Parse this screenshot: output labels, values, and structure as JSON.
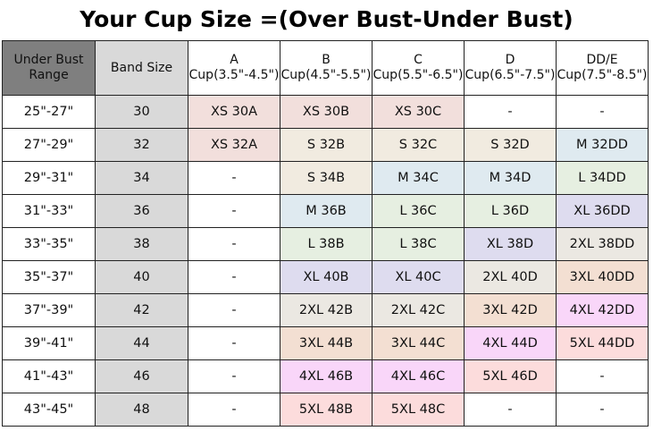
{
  "title": "Your Cup Size =(Over Bust-Under Bust)",
  "headers": [
    "Under Bust Range",
    "Band Size",
    "A Cup(3.5\"-4.5\")",
    "B Cup(4.5\"-5.5\")",
    "C Cup(5.5\"-6.5\")",
    "D Cup(6.5\"-7.5\")",
    "DD/E Cup(7.5\"-8.5\")"
  ],
  "colors": {
    "XS": "#f2dfdc",
    "S": "#f1ebe0",
    "M": "#dfeaf0",
    "L": "#e6efe1",
    "XL": "#dedcef",
    "2XL": "#ebe8e2",
    "3XL": "#f3dfd2",
    "4XL": "#f9d6f9",
    "5XL": "#fcdcdc",
    "empty": "#ffffff"
  },
  "rows": [
    {
      "range": "25\"-27\"",
      "band": "30",
      "cells": [
        "XS 30A",
        "XS 30B",
        "XS 30C",
        "-",
        "-"
      ]
    },
    {
      "range": "27\"-29\"",
      "band": "32",
      "cells": [
        "XS 32A",
        "S 32B",
        "S 32C",
        "S 32D",
        "M 32DD"
      ]
    },
    {
      "range": "29\"-31\"",
      "band": "34",
      "cells": [
        "-",
        "S 34B",
        "M 34C",
        "M 34D",
        "L 34DD"
      ]
    },
    {
      "range": "31\"-33\"",
      "band": "36",
      "cells": [
        "-",
        "M 36B",
        "L 36C",
        "L 36D",
        "XL 36DD"
      ]
    },
    {
      "range": "33\"-35\"",
      "band": "38",
      "cells": [
        "-",
        "L 38B",
        "L 38C",
        "XL 38D",
        "2XL 38DD"
      ]
    },
    {
      "range": "35\"-37\"",
      "band": "40",
      "cells": [
        "-",
        "XL 40B",
        "XL 40C",
        "2XL 40D",
        "3XL 40DD"
      ]
    },
    {
      "range": "37\"-39\"",
      "band": "42",
      "cells": [
        "-",
        "2XL 42B",
        "2XL 42C",
        "3XL 42D",
        "4XL 42DD"
      ]
    },
    {
      "range": "39\"-41\"",
      "band": "44",
      "cells": [
        "-",
        "3XL 44B",
        "3XL 44C",
        "4XL 44D",
        "5XL 44DD"
      ]
    },
    {
      "range": "41\"-43\"",
      "band": "46",
      "cells": [
        "-",
        "4XL 46B",
        "4XL 46C",
        "5XL 46D",
        "-"
      ]
    },
    {
      "range": "43\"-45\"",
      "band": "48",
      "cells": [
        "-",
        "5XL 48B",
        "5XL 48C",
        "-",
        "-"
      ]
    }
  ]
}
